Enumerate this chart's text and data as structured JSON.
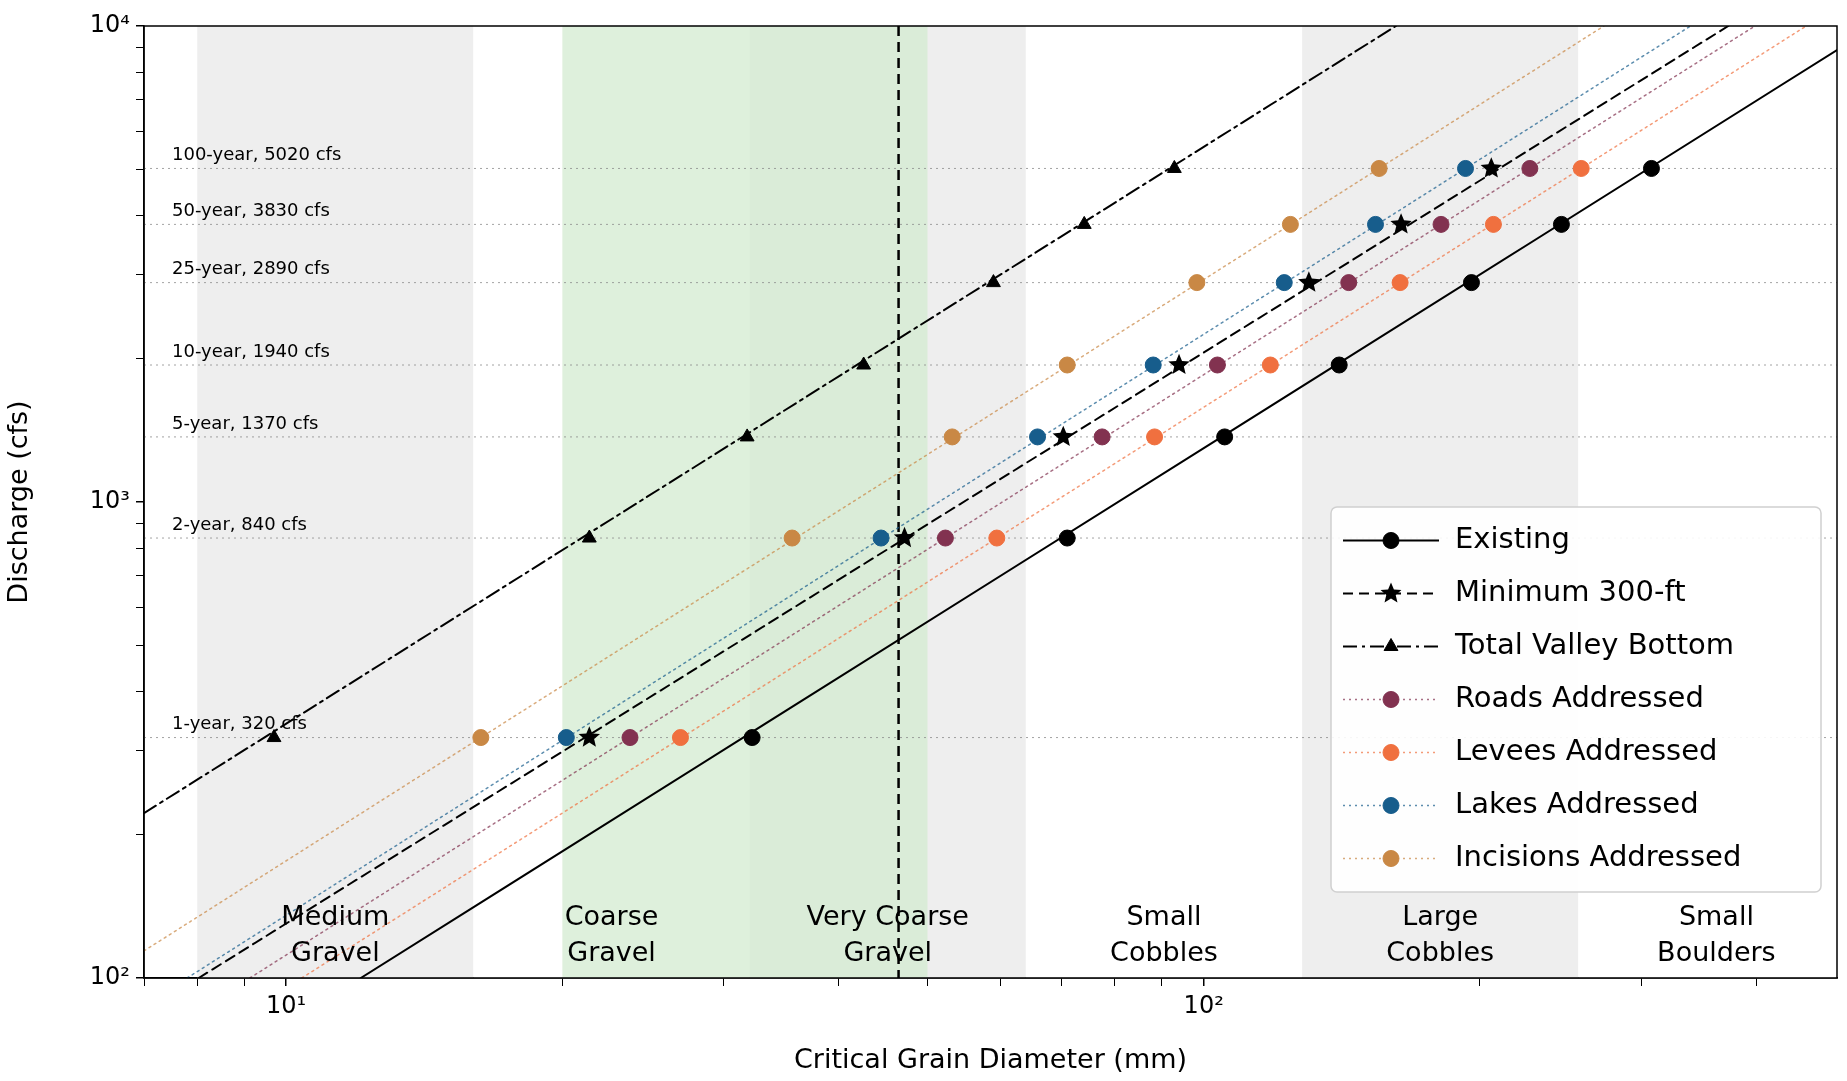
{
  "chart_data": {
    "type": "scatter",
    "xlabel": "Critical Grain Diameter (mm)",
    "ylabel": "Discharge (cfs)",
    "log": "xy",
    "grid": false,
    "legend": "bottom right",
    "xlim": [
      7,
      490
    ],
    "ylim": [
      100,
      10000
    ],
    "xticks": [
      {
        "value": 7,
        "label": null
      },
      {
        "value": 8,
        "label": null
      },
      {
        "value": 9,
        "label": null
      },
      {
        "value": 10,
        "label": "10¹"
      },
      {
        "value": 20,
        "label": null
      },
      {
        "value": 30,
        "label": null
      },
      {
        "value": 40,
        "label": null
      },
      {
        "value": 50,
        "label": null
      },
      {
        "value": 60,
        "label": null
      },
      {
        "value": 70,
        "label": null
      },
      {
        "value": 80,
        "label": null
      },
      {
        "value": 90,
        "label": null
      },
      {
        "value": 100,
        "label": "10²"
      },
      {
        "value": 200,
        "label": null
      },
      {
        "value": 300,
        "label": null
      },
      {
        "value": 400,
        "label": null
      }
    ],
    "yticks": [
      {
        "value": 100,
        "label": "10²"
      },
      {
        "value": 200,
        "label": null
      },
      {
        "value": 300,
        "label": null
      },
      {
        "value": 400,
        "label": null
      },
      {
        "value": 500,
        "label": null
      },
      {
        "value": 600,
        "label": null
      },
      {
        "value": 700,
        "label": null
      },
      {
        "value": 800,
        "label": null
      },
      {
        "value": 900,
        "label": null
      },
      {
        "value": 1000,
        "label": "10³"
      },
      {
        "value": 2000,
        "label": null
      },
      {
        "value": 3000,
        "label": null
      },
      {
        "value": 4000,
        "label": null
      },
      {
        "value": 5000,
        "label": null
      },
      {
        "value": 6000,
        "label": null
      },
      {
        "value": 7000,
        "label": null
      },
      {
        "value": 8000,
        "label": null
      },
      {
        "value": 9000,
        "label": null
      },
      {
        "value": 10000,
        "label": "10⁴"
      }
    ],
    "bands": [
      {
        "axis": "x",
        "from": 8,
        "to": 16,
        "color": "#ececec",
        "label": "Medium Gravel"
      },
      {
        "axis": "x",
        "from": 16,
        "to": 32,
        "color": "#ffffff",
        "label": "Coarse Gravel"
      },
      {
        "axis": "x",
        "from": 32,
        "to": 64,
        "color": "#ececec",
        "label": "Very Coarse Gravel"
      },
      {
        "axis": "x",
        "from": 64,
        "to": 128,
        "color": "#ffffff",
        "label": "Small Cobbles"
      },
      {
        "axis": "x",
        "from": 128,
        "to": 256,
        "color": "#ececec",
        "label": "Large Cobbles"
      },
      {
        "axis": "x",
        "from": 256,
        "to": 512,
        "color": "#ffffff",
        "label": "Small Boulders"
      },
      {
        "axis": "x",
        "from": 20,
        "to": 50,
        "color": "#d3ebd0"
      }
    ],
    "ref_lines": [
      {
        "axis": "y",
        "value": 320,
        "label": "1-year, 320 cfs",
        "color": "#8c8c8c",
        "line_style": "dotted"
      },
      {
        "axis": "y",
        "value": 840,
        "label": "2-year, 840 cfs",
        "color": "#8c8c8c",
        "line_style": "dotted"
      },
      {
        "axis": "y",
        "value": 1370,
        "label": "5-year, 1370 cfs",
        "color": "#8c8c8c",
        "line_style": "dotted"
      },
      {
        "axis": "y",
        "value": 1940,
        "label": "10-year, 1940 cfs",
        "color": "#8c8c8c",
        "line_style": "dotted"
      },
      {
        "axis": "y",
        "value": 2890,
        "label": "25-year, 2890 cfs",
        "color": "#8c8c8c",
        "line_style": "dotted"
      },
      {
        "axis": "y",
        "value": 3830,
        "label": "50-year, 3830 cfs",
        "color": "#8c8c8c",
        "line_style": "dotted"
      },
      {
        "axis": "y",
        "value": 5020,
        "label": "100-year, 5020 cfs",
        "color": "#8c8c8c",
        "line_style": "dotted"
      },
      {
        "axis": "x",
        "value": 46.5,
        "color": "#000000",
        "line_style": "dashed"
      }
    ],
    "series": [
      {
        "name": "Existing",
        "color": "#000000",
        "marker": "circle",
        "line_style": "solid",
        "x": [
          32.2,
          71.0,
          105.4,
          140.5,
          195.8,
          245.4,
          307.6
        ],
        "values": [
          320,
          840,
          1370,
          1940,
          2890,
          3830,
          5020
        ]
      },
      {
        "name": "Minimum 300-ft",
        "color": "#000000",
        "marker": "star",
        "line_style": "dashed",
        "x": [
          21.4,
          47.2,
          70.3,
          94.0,
          130.2,
          164.1,
          205.8
        ],
        "values": [
          320,
          840,
          1370,
          1940,
          2890,
          3830,
          5020
        ]
      },
      {
        "name": "Total Valley Bottom",
        "color": "#000000",
        "marker": "triangle",
        "line_style": "dashdot",
        "x": [
          9.7,
          21.4,
          31.8,
          42.6,
          59.0,
          74.1,
          92.9
        ],
        "values": [
          320,
          840,
          1370,
          1940,
          2890,
          3830,
          5020
        ]
      },
      {
        "name": "Roads Addressed",
        "color": "#823250",
        "marker": "circle",
        "line_style": "dotted",
        "x": [
          23.7,
          52.3,
          77.5,
          103.5,
          143.9,
          181.4,
          226.7
        ],
        "values": [
          320,
          840,
          1370,
          1940,
          2890,
          3830,
          5020
        ]
      },
      {
        "name": "Levees Addressed",
        "color": "#f0703f",
        "marker": "circle",
        "line_style": "dotted",
        "x": [
          26.9,
          59.5,
          88.4,
          118.2,
          163.7,
          206.9,
          257.9
        ],
        "values": [
          320,
          840,
          1370,
          1940,
          2890,
          3830,
          5020
        ]
      },
      {
        "name": "Lakes Addressed",
        "color": "#175d8c",
        "marker": "circle",
        "line_style": "dotted",
        "x": [
          20.2,
          44.5,
          65.9,
          88.1,
          122.4,
          153.9,
          192.9
        ],
        "values": [
          320,
          840,
          1370,
          1940,
          2890,
          3830,
          5020
        ]
      },
      {
        "name": "Incisions Addressed",
        "color": "#c98845",
        "marker": "circle",
        "line_style": "dotted",
        "x": [
          16.3,
          35.6,
          53.2,
          71.0,
          98.3,
          124.3,
          155.3
        ],
        "values": [
          320,
          840,
          1370,
          1940,
          2890,
          3830,
          5020
        ]
      },
      {
        "type": "line",
        "color": "#000000",
        "marker": "none",
        "line_style": "solid",
        "x": [
          12.06,
          490
        ],
        "values": [
          100,
          8900
        ]
      },
      {
        "type": "line",
        "color": "#000000",
        "marker": "none",
        "line_style": "dashed",
        "x": [
          8.03,
          373
        ],
        "values": [
          100,
          10000
        ]
      },
      {
        "type": "line",
        "color": "#000000",
        "marker": "none",
        "line_style": "dashdot",
        "x": [
          7,
          162
        ],
        "values": [
          222,
          10000
        ]
      },
      {
        "type": "line",
        "color": "#823250",
        "marker": "none",
        "line_style": "dotted",
        "x": [
          9.13,
          398.8
        ],
        "values": [
          100,
          10000
        ]
      },
      {
        "type": "line",
        "color": "#f0703f",
        "marker": "none",
        "line_style": "dotted",
        "x": [
          10.4,
          453.6
        ],
        "values": [
          100,
          10000
        ]
      },
      {
        "type": "line",
        "color": "#175d8c",
        "marker": "none",
        "line_style": "dotted",
        "x": [
          7.8,
          339.3
        ],
        "values": [
          100,
          10000
        ]
      },
      {
        "type": "line",
        "color": "#c98845",
        "marker": "none",
        "line_style": "dotted",
        "x": [
          7,
          273
        ],
        "values": [
          114,
          10000
        ]
      }
    ]
  }
}
